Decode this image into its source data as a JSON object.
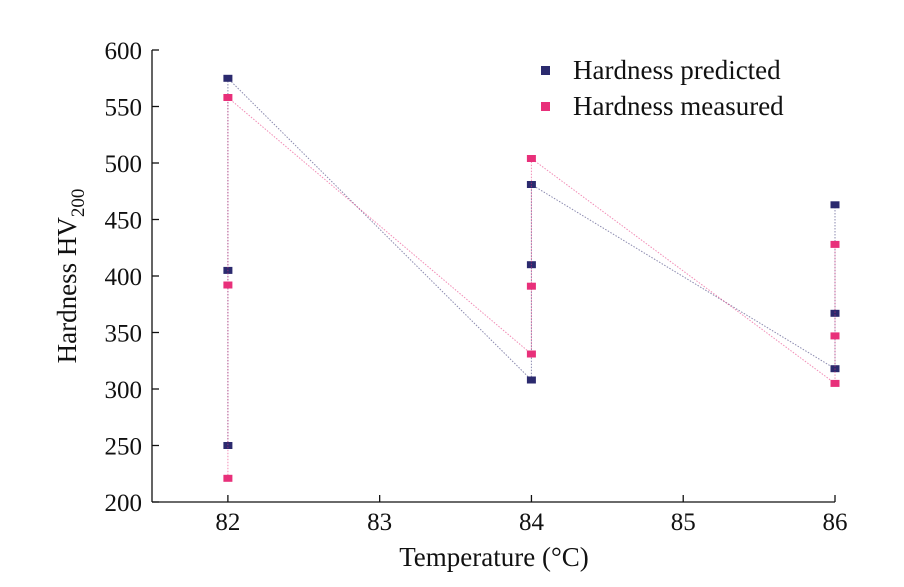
{
  "chart_data": {
    "type": "line",
    "title": "",
    "xlabel": "Temperature (°C)",
    "ylabel_main": "Hardness HV",
    "ylabel_sub": "200",
    "xlim": [
      81.5,
      86.0
    ],
    "ylim": [
      200,
      600
    ],
    "xticks": [
      82,
      83,
      84,
      85,
      86
    ],
    "yticks": [
      200,
      250,
      300,
      350,
      400,
      450,
      500,
      550,
      600
    ],
    "legend_position": "top-right",
    "series": [
      {
        "name": "Hardness predicted",
        "color": "#2b2a6e",
        "x": [
          82,
          82,
          82,
          84,
          84,
          84,
          86,
          86,
          86
        ],
        "y": [
          250,
          405,
          575,
          308,
          410,
          481,
          318,
          367,
          463
        ]
      },
      {
        "name": "Hardness measured",
        "color": "#e8307a",
        "x": [
          82,
          82,
          82,
          84,
          84,
          84,
          86,
          86,
          86
        ],
        "y": [
          221,
          392,
          558,
          331,
          391,
          504,
          305,
          347,
          428
        ]
      }
    ]
  }
}
